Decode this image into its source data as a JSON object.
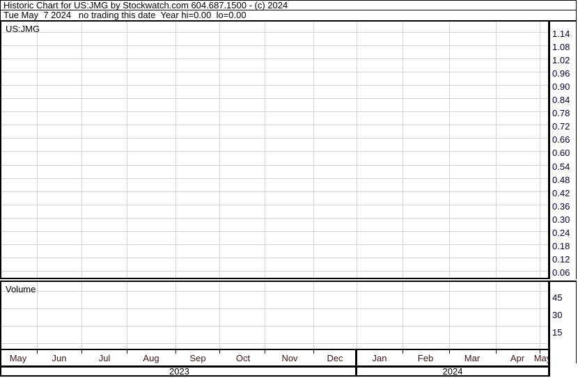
{
  "header": {
    "title": "Historic Chart for US:JMG by Stockwatch.com 604.687.1500 - (c) 2024",
    "status_line": "Tue May  7 2024   no trading this date  Year hi=0.00  lo=0.00"
  },
  "chart_data": {
    "type": "line",
    "title": "Historic Chart for US:JMG",
    "symbol_label": "US:JMG",
    "volume_label": "Volume",
    "series": [],
    "price_axis": {
      "side": "right",
      "ticks": [
        "1.14",
        "1.08",
        "1.02",
        "0.96",
        "0.90",
        "0.84",
        "0.78",
        "0.72",
        "0.66",
        "0.60",
        "0.54",
        "0.48",
        "0.42",
        "0.36",
        "0.30",
        "0.24",
        "0.18",
        "0.12",
        "0.06"
      ]
    },
    "volume_axis": {
      "side": "right",
      "ticks": [
        "45",
        "30",
        "15"
      ]
    },
    "x_axis": {
      "month_ticks": [
        "May",
        "Jun",
        "Jul",
        "Aug",
        "Sep",
        "Oct",
        "Nov",
        "Dec",
        "Jan",
        "Feb",
        "Mar",
        "Apr",
        "May"
      ],
      "year_labels": [
        "2023",
        "2024"
      ]
    },
    "grid": true
  },
  "colors": {
    "border": "#000000",
    "gridline": "#d3d3d3",
    "axis_text": "#000030",
    "month_text": "#441111"
  }
}
